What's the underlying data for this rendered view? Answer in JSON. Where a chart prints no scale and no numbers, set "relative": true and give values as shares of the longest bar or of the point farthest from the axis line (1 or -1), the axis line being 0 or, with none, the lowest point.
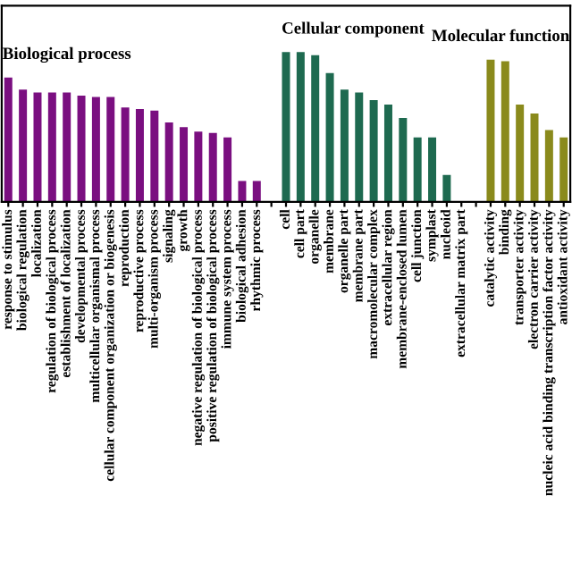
{
  "chart_data": {
    "type": "bar",
    "relative": true,
    "legend": false,
    "grid": false,
    "categories": [
      "response to stimulus",
      "biological regulation",
      "localization",
      "regulation of biological process",
      "establishment of localization",
      "developmental process",
      "multicellular organismal process",
      "cellular component organization or biogenesis",
      "reproduction",
      "reproductive process",
      "multi-organism process",
      "signaling",
      "growth",
      "negative regulation of biological process",
      "positive regulation of biological process",
      "immune system process",
      "biological adhesion",
      "rhythmic process",
      null,
      "cell",
      "cell part",
      "organelle",
      "membrane",
      "organelle part",
      "membrane part",
      "macromolecular complex",
      "extracellular region",
      "membrane-enclosed lumen",
      "cell junction",
      "symplast",
      "nucleoid",
      "extracellular matrix part",
      null,
      "catalytic activity",
      "binding",
      "transporter activity",
      "electron carrier activity",
      "nucleic acid binding transcription factor activity",
      "antioxidant activity"
    ],
    "series": [
      {
        "name": "Biological process",
        "color": "#7a0f80",
        "values": [
          0.83,
          0.75,
          0.73,
          0.73,
          0.73,
          0.71,
          0.7,
          0.7,
          0.63,
          0.62,
          0.61,
          0.53,
          0.5,
          0.47,
          0.46,
          0.43,
          0.14,
          0.14,
          null,
          null,
          null,
          null,
          null,
          null,
          null,
          null,
          null,
          null,
          null,
          null,
          null,
          null,
          null,
          null,
          null,
          null,
          null,
          null,
          null
        ]
      },
      {
        "name": "Cellular component",
        "color": "#1e6a50",
        "values": [
          null,
          null,
          null,
          null,
          null,
          null,
          null,
          null,
          null,
          null,
          null,
          null,
          null,
          null,
          null,
          null,
          null,
          null,
          null,
          1,
          1,
          0.98,
          0.86,
          0.75,
          0.73,
          0.68,
          0.65,
          0.56,
          0.43,
          0.43,
          0.18,
          0,
          null,
          null,
          null,
          null,
          null,
          null,
          null
        ]
      },
      {
        "name": "Molecular function",
        "color": "#8a8a1c",
        "values": [
          null,
          null,
          null,
          null,
          null,
          null,
          null,
          null,
          null,
          null,
          null,
          null,
          null,
          null,
          null,
          null,
          null,
          null,
          null,
          null,
          null,
          null,
          null,
          null,
          null,
          null,
          null,
          null,
          null,
          null,
          null,
          null,
          null,
          0.95,
          0.94,
          0.65,
          0.59,
          0.48,
          0.43
        ]
      }
    ]
  }
}
